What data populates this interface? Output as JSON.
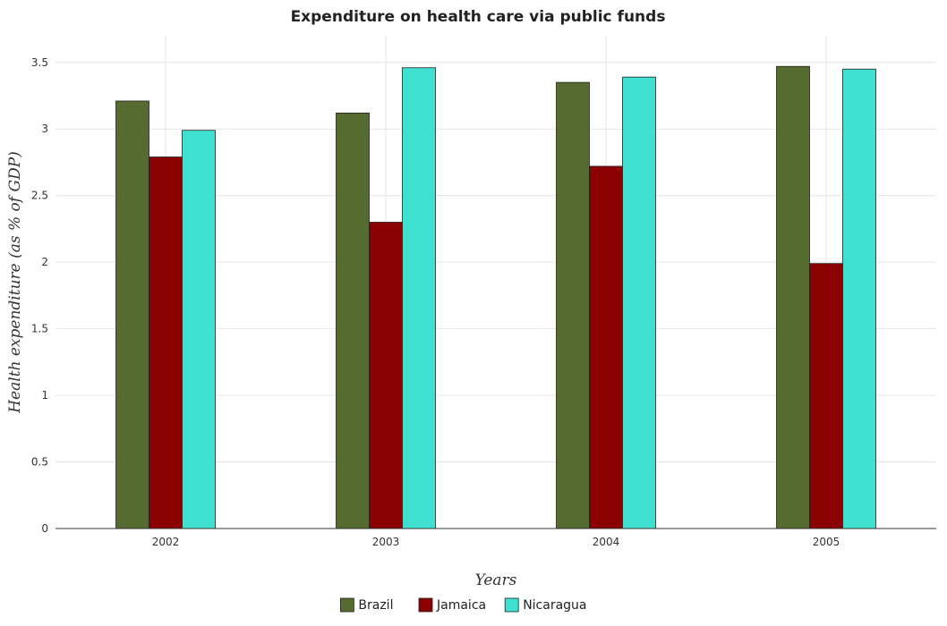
{
  "chart_data": {
    "type": "bar",
    "title": "Expenditure on health care via public funds",
    "xlabel": "Years",
    "ylabel": "Health expenditure (as % of GDP)",
    "categories": [
      "2002",
      "2003",
      "2004",
      "2005"
    ],
    "series": [
      {
        "name": "Brazil",
        "color": "#556b2f",
        "values": [
          3.21,
          3.12,
          3.35,
          3.47
        ]
      },
      {
        "name": "Jamaica",
        "color": "#8b0000",
        "values": [
          2.79,
          2.3,
          2.72,
          1.99
        ]
      },
      {
        "name": "Nicaragua",
        "color": "#40e0d0",
        "values": [
          2.99,
          3.46,
          3.39,
          3.45
        ]
      }
    ],
    "ylim": [
      0,
      3.7
    ],
    "yticks": [
      0,
      0.5,
      1,
      1.5,
      2,
      2.5,
      3,
      3.5
    ],
    "ytick_labels": [
      "0",
      "0.5",
      "1",
      "1.5",
      "2",
      "2.5",
      "3",
      "3.5"
    ],
    "grid": true,
    "legend_position": "bottom-center"
  }
}
